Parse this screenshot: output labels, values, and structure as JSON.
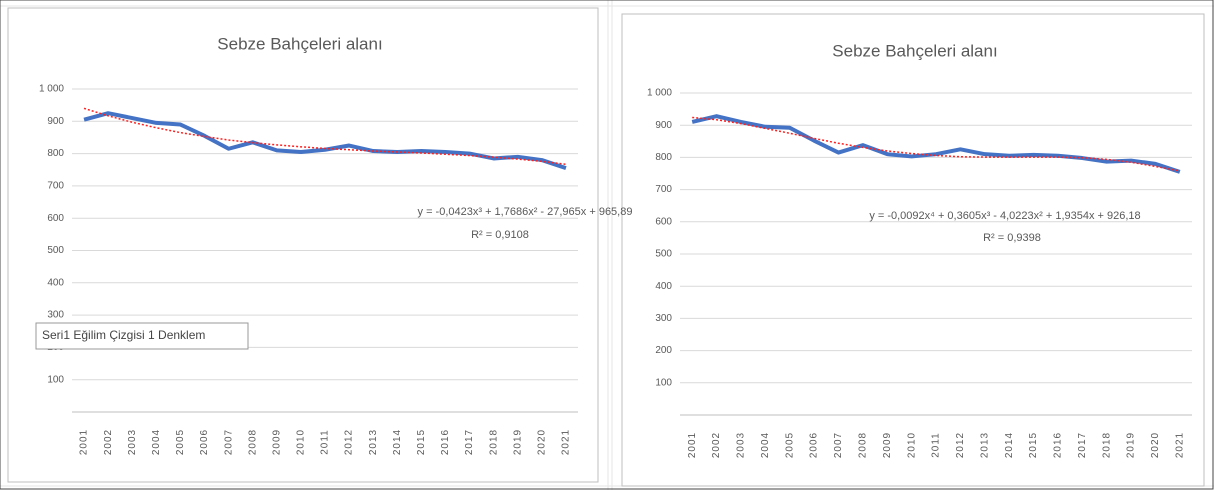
{
  "chart_data": [
    {
      "type": "line",
      "title": "Sebze Bahçeleri alanı",
      "categories": [
        "2001",
        "2002",
        "2003",
        "2004",
        "2005",
        "2006",
        "2007",
        "2008",
        "2009",
        "2010",
        "2011",
        "2012",
        "2013",
        "2014",
        "2015",
        "2016",
        "2017",
        "2018",
        "2019",
        "2020",
        "2021"
      ],
      "series": [
        {
          "color": "#4472c4",
          "values": [
            905,
            925,
            910,
            895,
            890,
            855,
            815,
            835,
            810,
            805,
            812,
            825,
            808,
            805,
            808,
            805,
            800,
            785,
            790,
            780,
            755
          ]
        }
      ],
      "trendline": {
        "color": "#ff2020",
        "values": [
          940,
          917,
          897,
          880,
          865,
          853,
          842,
          834,
          827,
          821,
          816,
          812,
          808,
          805,
          802,
          798,
          794,
          789,
          783,
          776,
          767
        ]
      },
      "equation": "y = -0,0423x³ + 1,7686x² - 27,965x + 965,89",
      "r_squared": "R² = 0,9108",
      "tooltip": "Seri1 Eğilim Çizgisi 1 Denklem",
      "ylim": [
        0,
        1000
      ],
      "yticks": [
        100,
        200,
        300,
        400,
        500,
        600,
        700,
        800,
        900,
        {
          "value": 1000,
          "label": "1 000"
        }
      ],
      "grid": true
    },
    {
      "type": "line",
      "title": "Sebze Bahçeleri alanı",
      "categories": [
        "2001",
        "2002",
        "2003",
        "2004",
        "2005",
        "2006",
        "2007",
        "2008",
        "2009",
        "2010",
        "2011",
        "2012",
        "2013",
        "2014",
        "2015",
        "2016",
        "2017",
        "2018",
        "2019",
        "2020",
        "2021"
      ],
      "series": [
        {
          "color": "#4472c4",
          "values": [
            910,
            928,
            910,
            895,
            892,
            852,
            815,
            838,
            810,
            803,
            810,
            825,
            810,
            805,
            808,
            805,
            798,
            787,
            790,
            780,
            755
          ]
        }
      ],
      "trendline": {
        "color": "#ff2020",
        "values": [
          924,
          917,
          905,
          890,
          875,
          859,
          844,
          831,
          820,
          812,
          806,
          802,
          801,
          801,
          801,
          801,
          799,
          794,
          785,
          772,
          758
        ]
      },
      "equation": "y = -0,0092x⁴ + 0,3605x³ - 4,0223x² + 1,9354x + 926,18",
      "r_squared": "R² = 0,9398",
      "ylim": [
        0,
        1000
      ],
      "yticks": [
        100,
        200,
        300,
        400,
        500,
        600,
        700,
        800,
        900,
        {
          "value": 1000,
          "label": "1 000"
        }
      ],
      "grid": true
    }
  ]
}
